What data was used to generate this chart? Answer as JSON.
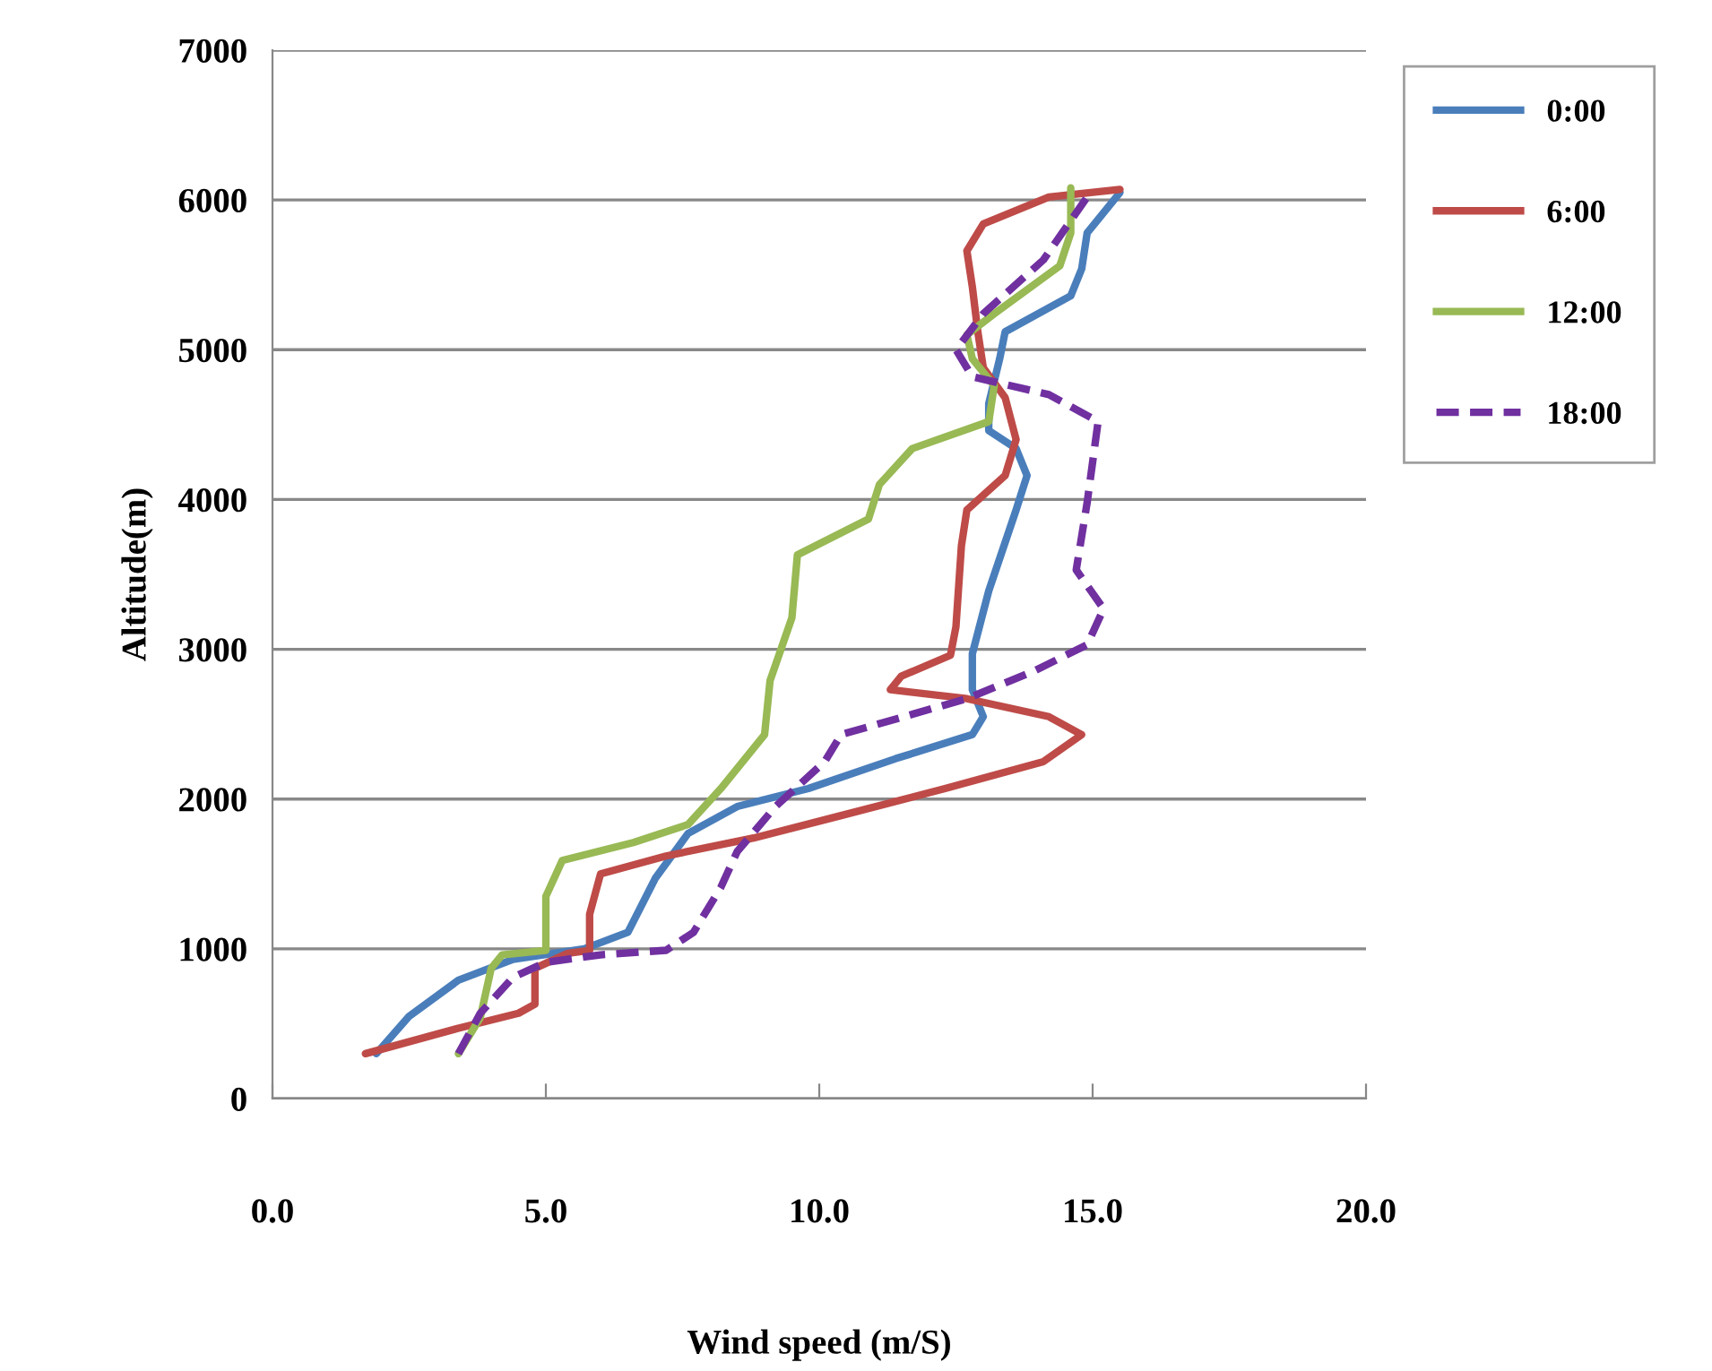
{
  "chart_data": {
    "type": "line",
    "xlabel": "Wind speed (m/S)",
    "ylabel": "Altitude(m)",
    "xlim": [
      0,
      20
    ],
    "xticks": [
      {
        "value": 0,
        "label": "0.0"
      },
      {
        "value": 5,
        "label": "5.0"
      },
      {
        "value": 10,
        "label": "10.0"
      },
      {
        "value": 15,
        "label": "15.0"
      },
      {
        "value": 20,
        "label": "20.0"
      }
    ],
    "ylim": [
      0,
      7000
    ],
    "yticks": [
      0,
      1000,
      2000,
      3000,
      4000,
      5000,
      6000,
      7000
    ],
    "grid": "y",
    "legend": "top right",
    "marker": "none",
    "series": [
      {
        "name": "0:00",
        "color": "#4a7ebb",
        "line_style": "solid",
        "x": [
          1.9,
          2.5,
          3.4,
          4.4,
          5.7,
          6.5,
          7.0,
          7.6,
          8.5,
          9.8,
          11.4,
          12.8,
          13.0,
          12.8,
          12.8,
          13.1,
          13.6,
          13.8,
          13.6,
          13.1,
          13.1,
          13.3,
          13.4,
          14.6,
          14.8,
          14.9,
          15.5
        ],
        "values": [
          300,
          550,
          790,
          930,
          1000,
          1110,
          1470,
          1770,
          1950,
          2070,
          2270,
          2430,
          2550,
          2730,
          2970,
          3390,
          3930,
          4160,
          4340,
          4460,
          4640,
          4940,
          5120,
          5360,
          5540,
          5780,
          6050
        ]
      },
      {
        "name": "6:00",
        "color": "#be4b48",
        "line_style": "solid",
        "x": [
          1.7,
          3.4,
          4.5,
          4.8,
          4.8,
          5.4,
          5.8,
          5.8,
          6.0,
          7.2,
          8.8,
          10.4,
          12.3,
          14.1,
          14.8,
          14.2,
          12.7,
          11.3,
          11.5,
          12.4,
          12.5,
          12.6,
          12.7,
          13.4,
          13.6,
          13.4,
          13.0,
          12.9,
          12.8,
          12.7,
          13.0,
          14.2,
          15.5
        ],
        "values": [
          300,
          470,
          570,
          630,
          870,
          970,
          990,
          1230,
          1500,
          1620,
          1740,
          1890,
          2070,
          2250,
          2430,
          2550,
          2670,
          2730,
          2820,
          2960,
          3150,
          3690,
          3930,
          4160,
          4400,
          4680,
          4880,
          5120,
          5420,
          5660,
          5840,
          6020,
          6070
        ]
      },
      {
        "name": "12:00",
        "color": "#98b954",
        "line_style": "solid",
        "x": [
          3.4,
          3.8,
          4.0,
          4.2,
          5.0,
          5.0,
          5.3,
          6.6,
          7.6,
          8.2,
          9.0,
          9.1,
          9.5,
          9.6,
          10.9,
          11.1,
          11.7,
          13.1,
          13.2,
          12.8,
          12.7,
          13.2,
          14.4,
          14.6,
          14.6
        ],
        "values": [
          300,
          540,
          870,
          960,
          990,
          1350,
          1590,
          1710,
          1830,
          2070,
          2430,
          2790,
          3210,
          3630,
          3870,
          4100,
          4340,
          4520,
          4760,
          4940,
          5100,
          5240,
          5560,
          5780,
          6080
        ]
      },
      {
        "name": "18:00",
        "color": "#7030a0",
        "line_style": "dashed",
        "x": [
          3.4,
          3.8,
          4.4,
          5.0,
          6.0,
          7.2,
          7.7,
          8.2,
          8.5,
          9.2,
          10.1,
          10.4,
          12.7,
          13.9,
          14.9,
          15.2,
          14.7,
          14.9,
          15.1,
          14.2,
          12.8,
          12.5,
          13.0,
          14.1,
          14.9
        ],
        "values": [
          300,
          570,
          810,
          910,
          960,
          990,
          1110,
          1410,
          1650,
          1950,
          2250,
          2430,
          2670,
          2850,
          3030,
          3270,
          3530,
          3980,
          4520,
          4700,
          4820,
          5000,
          5240,
          5600,
          6020
        ]
      }
    ]
  }
}
